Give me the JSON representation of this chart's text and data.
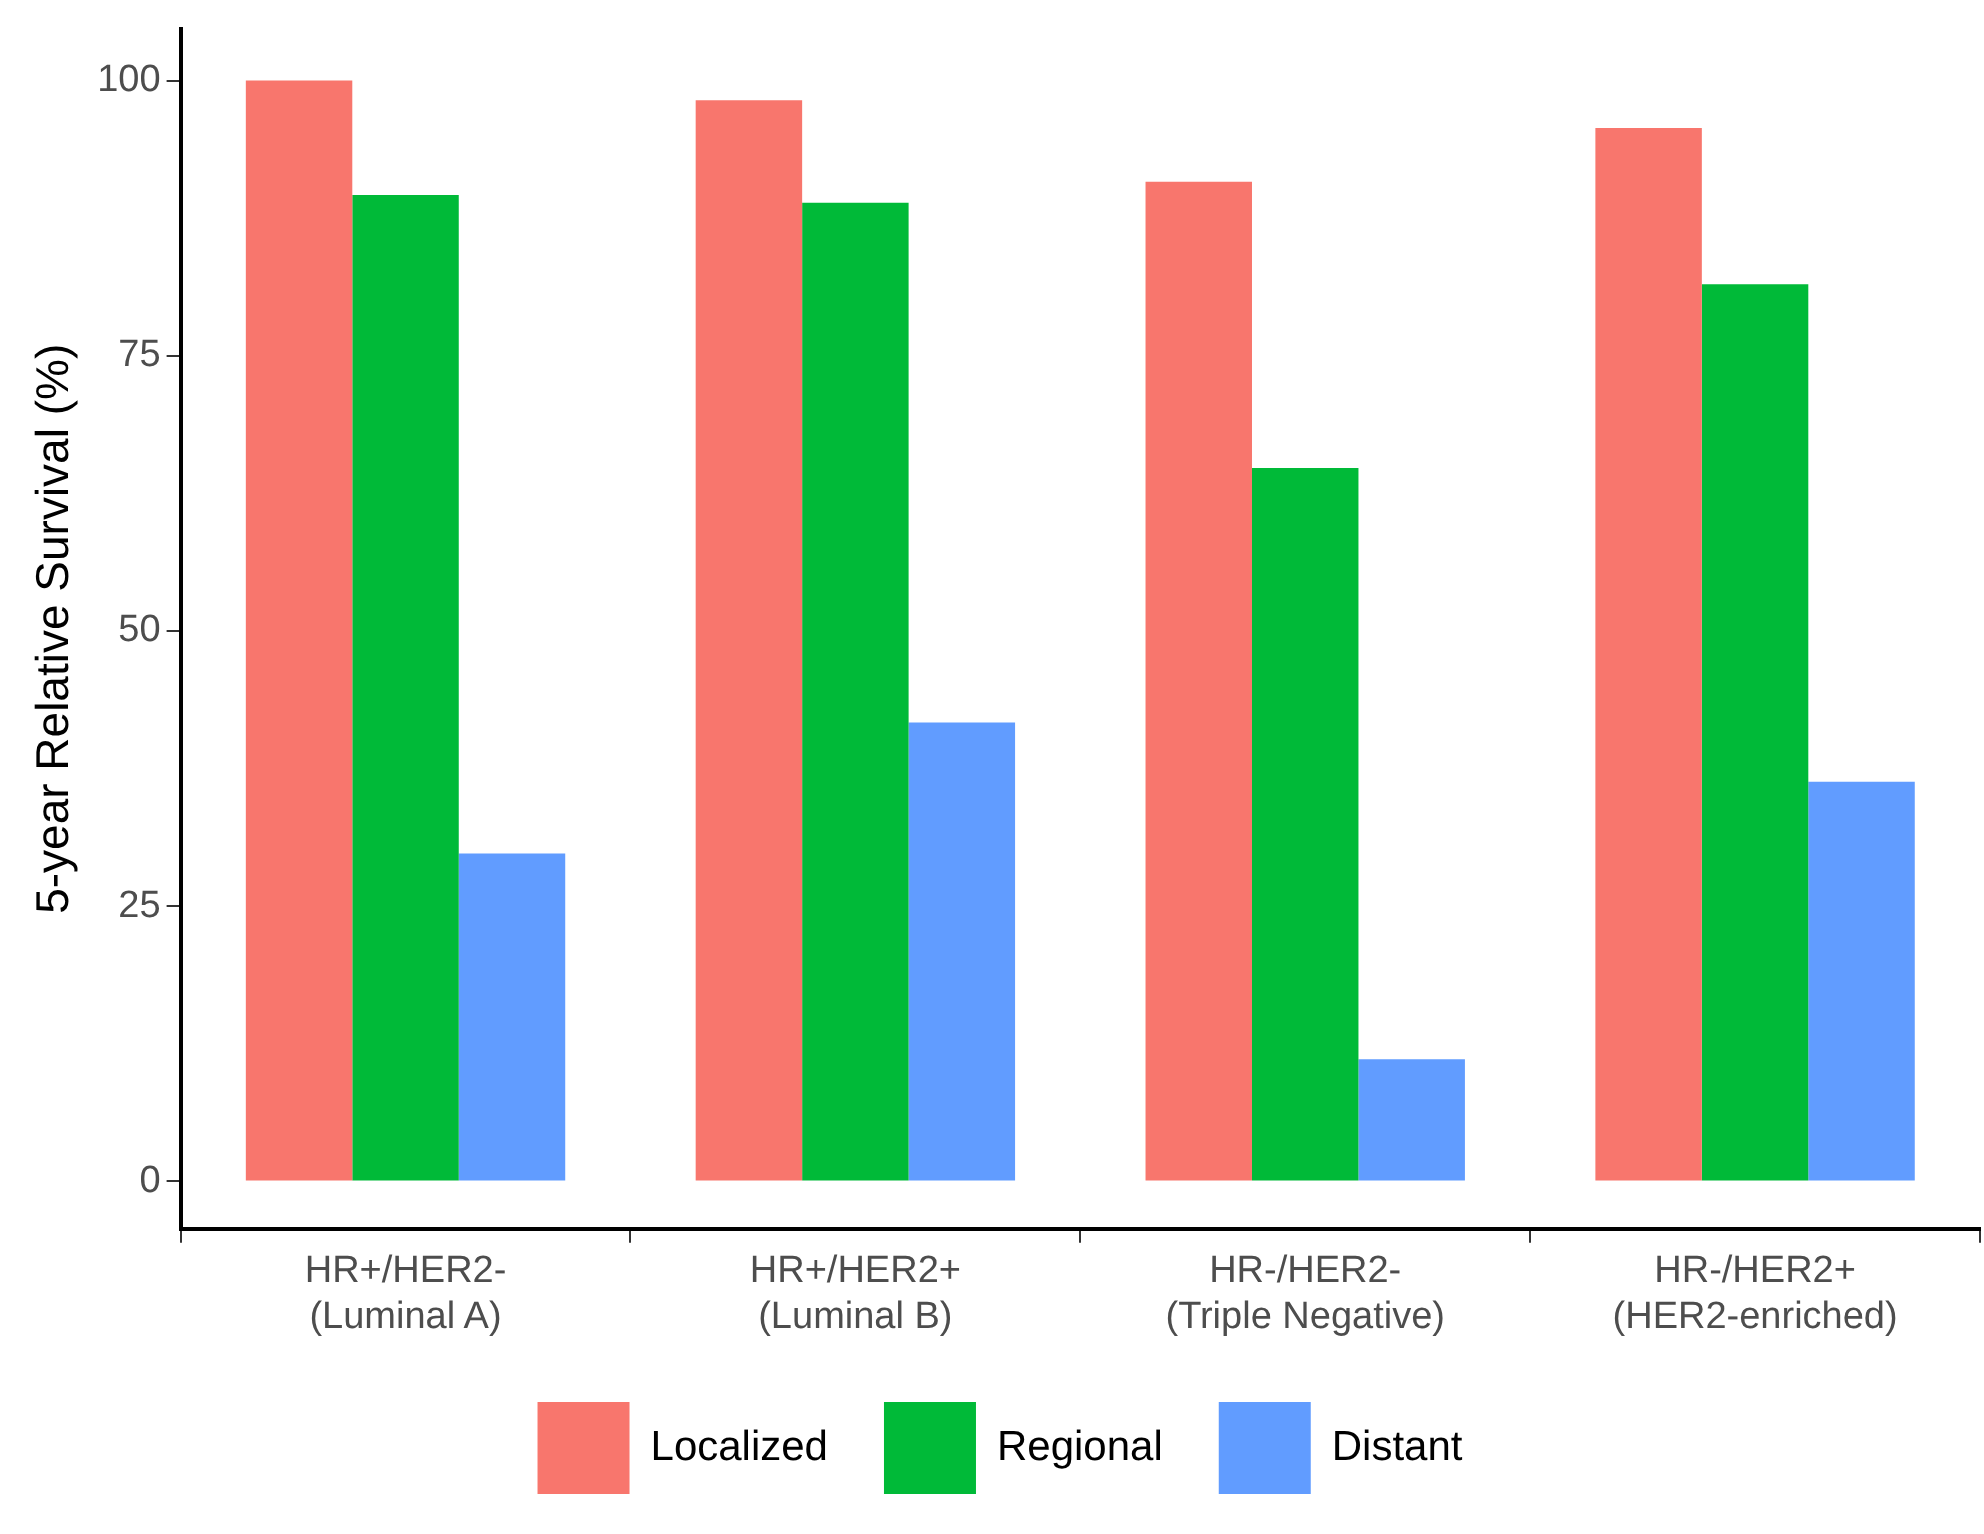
{
  "chart_data": {
    "type": "bar",
    "ylabel": "5-year Relative Survival (%)",
    "categories": [
      "HR+/HER2-\n(Luminal A)",
      "HR+/HER2+\n(Luminal B)",
      "HR-/HER2-\n(Triple Negative)",
      "HR-/HER2+\n(HER2-enriched)"
    ],
    "series": [
      {
        "name": "Localized",
        "color": "#f8766d",
        "values": [
          100,
          98.2,
          90.8,
          95.7
        ]
      },
      {
        "name": "Regional",
        "color": "#00ba38",
        "values": [
          89.6,
          88.9,
          64.8,
          81.5
        ]
      },
      {
        "name": "Distant",
        "color": "#619cff",
        "values": [
          29.8,
          41.7,
          11.1,
          36.3
        ]
      }
    ],
    "ylim": [
      -4.3,
      104.7
    ],
    "yticks": [
      0,
      25,
      50,
      75,
      100
    ],
    "grid": false,
    "legend": "bottom"
  }
}
